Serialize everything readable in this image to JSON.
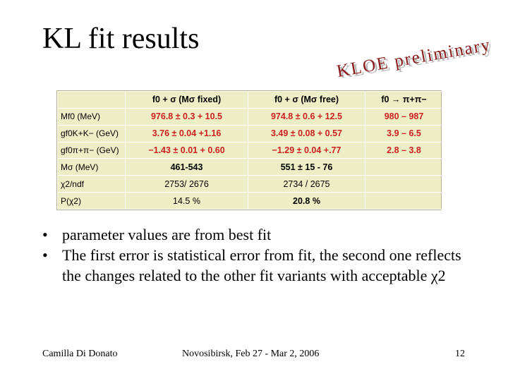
{
  "slide": {
    "title": "KL fit results",
    "stamp": "KLOE preliminary",
    "stamp_color": "#8b1a1a"
  },
  "table": {
    "headers": [
      "",
      "f0 + σ (Mσ fixed)",
      "f0 + σ (Mσ free)",
      "f0 → π+π−"
    ],
    "rows": [
      {
        "label": "Mf0 (MeV)",
        "c1": "976.8  ±  0.3 + 10.5",
        "c2": "974.8  ±  0.6 + 12.5",
        "c3": "980 – 987"
      },
      {
        "label": "gf0K+K− (GeV)",
        "c1": "3.76  ±  0.04 +1.16",
        "c2": "3.49  ±  0.08 + 0.57",
        "c3": "3.9 – 6.5"
      },
      {
        "label": "gf0π+π− (GeV)",
        "c1": "−1.43  ±  0.01 + 0.60",
        "c2": "−1.29  ±  0.04 +.77",
        "c3": "2.8 – 3.8"
      },
      {
        "label": "Mσ (MeV)",
        "c1": "461-543",
        "c2": "551  ±  15 - 76",
        "c3": ""
      },
      {
        "label": "χ2/ndf",
        "c1": "2753/ 2676",
        "c2": "2734 / 2675",
        "c3": ""
      },
      {
        "label": "P(χ2)",
        "c1": "14.5  %",
        "c2": "20.8 %",
        "c3": ""
      }
    ]
  },
  "bullets": [
    "parameter values are from best fit",
    "The first error is statistical error from fit, the second one reflects the changes related to the other fit variants with acceptable χ2"
  ],
  "bullet_symbol": "•",
  "footer": {
    "author": "Camilla Di Donato",
    "event": "Novosibirsk, Feb 27 - Mar 2, 2006",
    "page": "12"
  }
}
